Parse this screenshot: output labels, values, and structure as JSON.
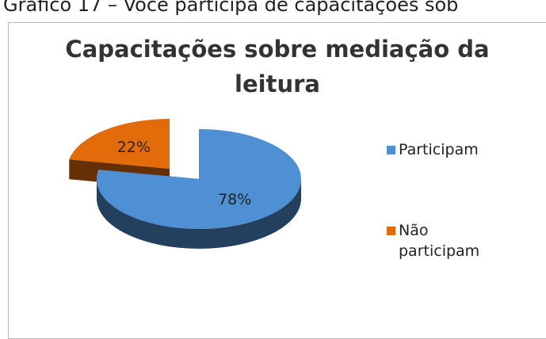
{
  "caption": "Gráfico 17 – Você participa de capacitações sob",
  "chart_data": {
    "type": "pie3d",
    "title": "Capacitações sobre mediação da leitura",
    "categories": [
      "Participam",
      "Não participam"
    ],
    "values": [
      78,
      22
    ],
    "value_labels": [
      "78%",
      "22%"
    ],
    "colors": [
      "#4f8fd3",
      "#e36c0a"
    ],
    "legend": "right"
  }
}
